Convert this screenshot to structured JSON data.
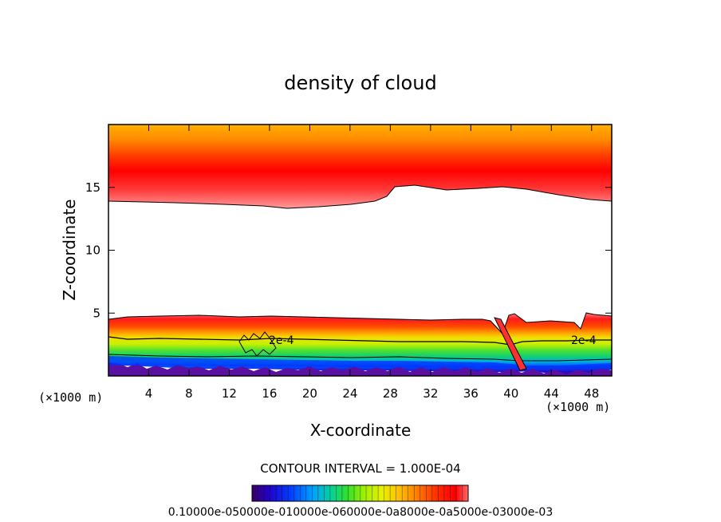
{
  "chart_data": {
    "type": "heatmap",
    "title": "density of cloud",
    "xlabel": "X-coordinate",
    "ylabel": "Z-coordinate",
    "x_unit": "(×1000 m)",
    "y_unit": "(×1000 m)",
    "xlim": [
      0,
      50
    ],
    "ylim": [
      0,
      20
    ],
    "xticks": [
      4,
      8,
      12,
      16,
      20,
      24,
      28,
      32,
      36,
      40,
      44,
      48
    ],
    "yticks": [
      5,
      10,
      15
    ],
    "contour_interval_text": "CONTOUR INTERVAL = 1.000E-04",
    "contour_label_left": "2e-4",
    "contour_label_right": "2e-4",
    "colorbar_text": "0.10000e-050000e-010000e-060000e-0a8000e-0a5000e-03000e-03",
    "colorscale": [
      "#3a0066",
      "#2200cc",
      "#0040ff",
      "#00a0ff",
      "#00d0a0",
      "#30e030",
      "#a0f000",
      "#e8f000",
      "#ffc000",
      "#ff8000",
      "#ff2a00",
      "#ff0000",
      "#ff6a6a"
    ],
    "upper_layer": {
      "bottom_z": [
        13.9,
        13.6,
        13.4,
        13.8,
        15.1,
        15.0,
        14.8,
        14.2,
        13.9
      ],
      "bottom_x": [
        0,
        10,
        18,
        26,
        28,
        34,
        40,
        46,
        50
      ],
      "peak_z": 16.2
    },
    "lower_layer": {
      "top_z_left": 4.9,
      "top_z_right": 4.8,
      "contour_2e4_z": 3.0,
      "base_z": 1.2
    }
  }
}
